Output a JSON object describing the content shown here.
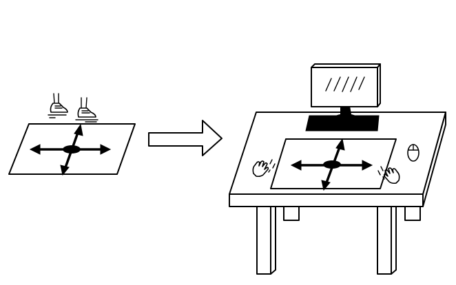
{
  "diagram": {
    "left_panel": {
      "mat": "floor-mat",
      "icons": [
        "left-shoe-icon",
        "right-shoe-icon",
        "four-way-arrow-icon"
      ]
    },
    "connector": "right-arrow-icon",
    "right_panel": {
      "furniture": "desk",
      "items": [
        "monitor",
        "monitor-stand",
        "desk-mat",
        "four-way-arrow-icon",
        "left-hand-icon",
        "right-hand-icon",
        "mouse-icon"
      ]
    },
    "colors": {
      "stroke": "#000000",
      "background": "#ffffff"
    }
  }
}
